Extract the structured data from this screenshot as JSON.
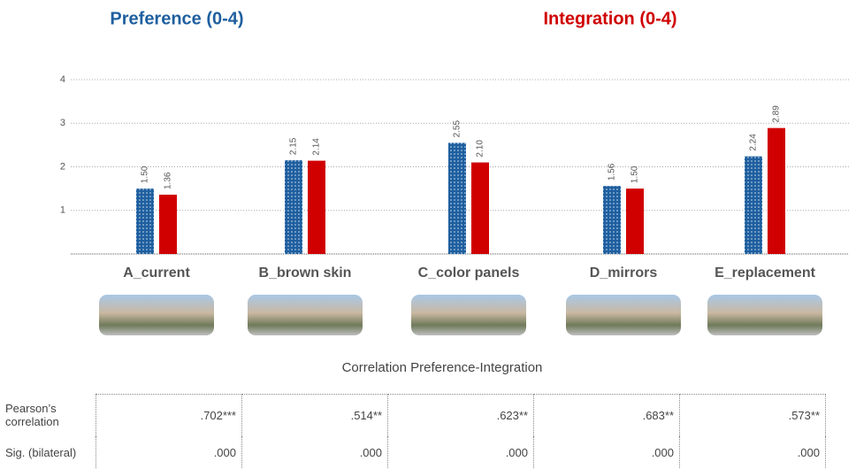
{
  "chart_data": {
    "type": "bar",
    "categories": [
      "A_current",
      "B_brown skin",
      "C_color panels",
      "D_mirrors",
      "E_replacement"
    ],
    "series": [
      {
        "name": "Preference (0-4)",
        "color": "#1f5f9f",
        "values": [
          1.5,
          2.15,
          2.55,
          1.56,
          2.24
        ],
        "value_labels": [
          "1.50",
          "2.15",
          "2.55",
          "1.56",
          "2.24"
        ]
      },
      {
        "name": "Integration (0-4)",
        "color": "#d00000",
        "values": [
          1.36,
          2.14,
          2.1,
          1.5,
          2.89
        ],
        "value_labels": [
          "1.36",
          "2.14",
          "2.10",
          "1.50",
          "2.89"
        ]
      }
    ],
    "ylim": [
      0,
      4
    ],
    "yticks": [
      1,
      2,
      3,
      4
    ],
    "grid": true
  },
  "correlation_table": {
    "title": "Correlation Preference-Integration",
    "rows": [
      {
        "label": "Pearson’s correlation",
        "cells": [
          ".702***",
          ".514**",
          ".623**",
          ".683**",
          ".573**"
        ]
      },
      {
        "label": "Sig. (bilateral)",
        "cells": [
          ".000",
          ".000",
          ".000",
          ".000",
          ".000"
        ]
      }
    ]
  }
}
